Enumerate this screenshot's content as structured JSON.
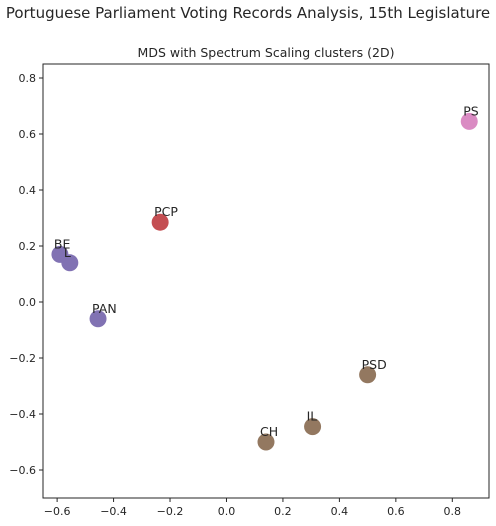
{
  "figure": {
    "suptitle": "Portuguese Parliament Voting Records Analysis, 15th Legislature"
  },
  "chart_data": {
    "type": "scatter",
    "title": "MDS with Spectrum Scaling clusters (2D)",
    "xlabel": "",
    "ylabel": "",
    "xlim": [
      -0.65,
      0.93
    ],
    "ylim": [
      -0.7,
      0.85
    ],
    "xticks": [
      -0.6,
      -0.4,
      -0.2,
      0.0,
      0.2,
      0.4,
      0.6,
      0.8
    ],
    "xtick_labels": [
      "−0.6",
      "−0.4",
      "−0.2",
      "0.0",
      "0.2",
      "0.4",
      "0.6",
      "0.8"
    ],
    "yticks": [
      -0.6,
      -0.4,
      -0.2,
      0.0,
      0.2,
      0.4,
      0.6,
      0.8
    ],
    "ytick_labels": [
      "−0.6",
      "−0.4",
      "−0.2",
      "0.0",
      "0.2",
      "0.4",
      "0.6",
      "0.8"
    ],
    "grid": false,
    "points": [
      {
        "label": "PS",
        "x": 0.86,
        "y": 0.645,
        "color": "#DA8BC3"
      },
      {
        "label": "PCP",
        "x": -0.235,
        "y": 0.285,
        "color": "#C44E52"
      },
      {
        "label": "BE",
        "x": -0.59,
        "y": 0.17,
        "color": "#8172B3"
      },
      {
        "label": "L",
        "x": -0.555,
        "y": 0.14,
        "color": "#8172B3"
      },
      {
        "label": "PAN",
        "x": -0.455,
        "y": -0.06,
        "color": "#8172B3"
      },
      {
        "label": "PSD",
        "x": 0.5,
        "y": -0.26,
        "color": "#937860"
      },
      {
        "label": "IL",
        "x": 0.305,
        "y": -0.445,
        "color": "#937860"
      },
      {
        "label": "CH",
        "x": 0.14,
        "y": -0.5,
        "color": "#937860"
      }
    ]
  }
}
